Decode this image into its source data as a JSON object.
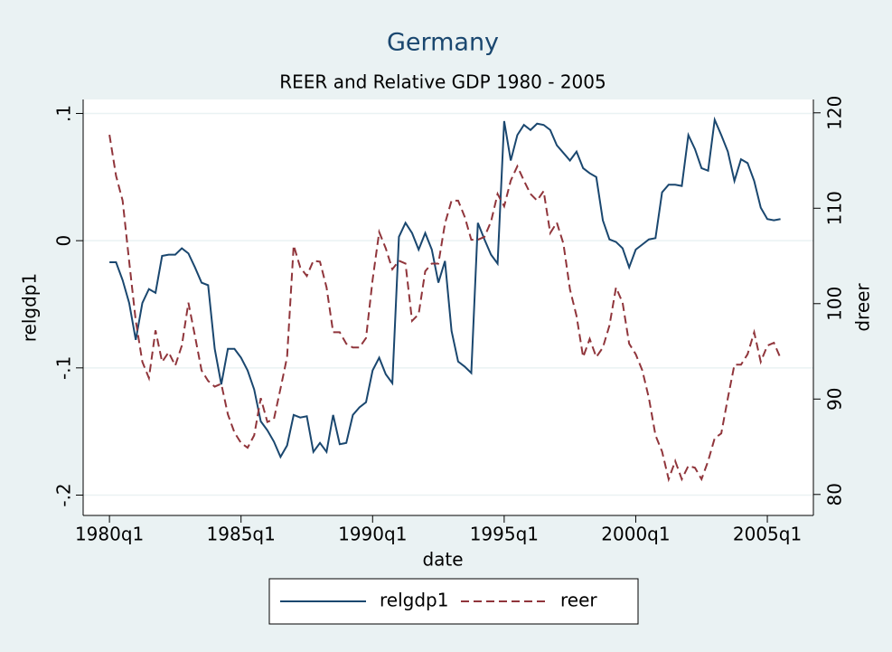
{
  "chart_data": {
    "type": "line",
    "title": "Germany",
    "subtitle": "REER and Relative GDP 1980 - 2005",
    "x_label": "date",
    "y_label": "relgdp1",
    "y2_label": "dreer",
    "x": [
      "1980q1",
      "1980q2",
      "1980q3",
      "1980q4",
      "1981q1",
      "1981q2",
      "1981q3",
      "1981q4",
      "1982q1",
      "1982q2",
      "1982q3",
      "1982q4",
      "1983q1",
      "1983q2",
      "1983q3",
      "1983q4",
      "1984q1",
      "1984q2",
      "1984q3",
      "1984q4",
      "1985q1",
      "1985q2",
      "1985q3",
      "1985q4",
      "1986q1",
      "1986q2",
      "1986q3",
      "1986q4",
      "1987q1",
      "1987q2",
      "1987q3",
      "1987q4",
      "1988q1",
      "1988q2",
      "1988q3",
      "1988q4",
      "1989q1",
      "1989q2",
      "1989q3",
      "1989q4",
      "1990q1",
      "1990q2",
      "1990q3",
      "1990q4",
      "1991q1",
      "1991q2",
      "1991q3",
      "1991q4",
      "1992q1",
      "1992q2",
      "1992q3",
      "1992q4",
      "1993q1",
      "1993q2",
      "1993q3",
      "1993q4",
      "1994q1",
      "1994q2",
      "1994q3",
      "1994q4",
      "1995q1",
      "1995q2",
      "1995q3",
      "1995q4",
      "1996q1",
      "1996q2",
      "1996q3",
      "1996q4",
      "1997q1",
      "1997q2",
      "1997q3",
      "1997q4",
      "1998q1",
      "1998q2",
      "1998q3",
      "1998q4",
      "1999q1",
      "1999q2",
      "1999q3",
      "1999q4",
      "2000q1",
      "2000q2",
      "2000q3",
      "2000q4",
      "2001q1",
      "2001q2",
      "2001q3",
      "2001q4",
      "2002q1",
      "2002q2",
      "2002q3",
      "2002q4",
      "2003q1",
      "2003q2",
      "2003q3",
      "2003q4",
      "2004q1",
      "2004q2",
      "2004q3",
      "2004q4",
      "2005q1",
      "2005q2",
      "2005q3"
    ],
    "series": [
      {
        "name": "relgdp1",
        "color": "#1a476f",
        "dash": false,
        "values": [
          -0.017,
          -0.017,
          -0.031,
          -0.049,
          -0.078,
          -0.049,
          -0.038,
          -0.041,
          -0.012,
          -0.011,
          -0.011,
          -0.006,
          -0.01,
          -0.021,
          -0.033,
          -0.035,
          -0.085,
          -0.113,
          -0.085,
          -0.085,
          -0.092,
          -0.102,
          -0.117,
          -0.142,
          -0.149,
          -0.158,
          -0.17,
          -0.161,
          -0.137,
          -0.139,
          -0.138,
          -0.166,
          -0.159,
          -0.166,
          -0.137,
          -0.16,
          -0.159,
          -0.137,
          -0.131,
          -0.127,
          -0.102,
          -0.092,
          -0.105,
          -0.112,
          0.003,
          0.014,
          0.006,
          -0.007,
          0.006,
          -0.007,
          -0.033,
          -0.016,
          -0.071,
          -0.095,
          -0.099,
          -0.104,
          0.014,
          0.001,
          -0.011,
          -0.018,
          0.094,
          0.063,
          0.083,
          0.091,
          0.087,
          0.092,
          0.091,
          0.087,
          0.075,
          0.069,
          0.063,
          0.07,
          0.057,
          0.053,
          0.05,
          0.016,
          0.001,
          -0.001,
          -0.006,
          -0.021,
          -0.007,
          -0.003,
          0.001,
          0.002,
          0.038,
          0.044,
          0.044,
          0.043,
          0.083,
          0.072,
          0.057,
          0.055,
          0.095,
          0.083,
          0.07,
          0.047,
          0.064,
          0.061,
          0.047,
          0.026,
          0.017,
          0.016,
          0.017
        ]
      },
      {
        "name": "reer",
        "color": "#90353b",
        "dash": true,
        "axis": "y2",
        "values": [
          117.7,
          113.4,
          110.8,
          104.4,
          98.2,
          93.9,
          92.2,
          97.2,
          93.9,
          94.9,
          93.5,
          95.6,
          100.1,
          96.6,
          93.0,
          91.9,
          91.3,
          91.6,
          88.4,
          86.5,
          85.4,
          84.9,
          86.2,
          90.1,
          87.6,
          87.9,
          91.1,
          94.4,
          106.1,
          103.8,
          102.9,
          104.5,
          104.4,
          101.7,
          97.0,
          97.0,
          95.8,
          95.4,
          95.4,
          96.4,
          102.5,
          107.5,
          105.8,
          103.6,
          104.5,
          104.2,
          98.2,
          98.9,
          103.4,
          104.2,
          104.2,
          108.4,
          110.8,
          110.8,
          109.1,
          106.7,
          106.7,
          107.0,
          108.6,
          111.5,
          110.2,
          112.9,
          114.4,
          112.9,
          111.5,
          110.8,
          111.8,
          107.4,
          108.5,
          106.3,
          101.5,
          98.7,
          94.4,
          96.3,
          94.4,
          95.4,
          97.7,
          101.7,
          100.1,
          95.8,
          94.7,
          93.0,
          90.1,
          86.2,
          84.5,
          81.6,
          83.5,
          81.6,
          83.0,
          82.8,
          81.6,
          83.5,
          85.9,
          86.4,
          90.1,
          93.6,
          93.6,
          94.7,
          97.0,
          93.9,
          95.6,
          95.9,
          94.3
        ]
      }
    ],
    "xlim": [
      "1979q1",
      "2006q4"
    ],
    "xticks": [
      "1980q1",
      "1985q1",
      "1990q1",
      "1995q1",
      "2000q1",
      "2005q1"
    ],
    "ylim": [
      -0.216,
      0.111
    ],
    "yticks": [
      {
        "value": -0.2,
        "label": "-.2"
      },
      {
        "value": -0.1,
        "label": "-.1"
      },
      0,
      {
        "value": 0.1,
        "label": ".1"
      }
    ],
    "y2lim": [
      77.8,
      121.4
    ],
    "y2ticks": [
      80,
      90,
      100,
      110,
      120
    ],
    "grid": true,
    "legend": "bottom"
  }
}
